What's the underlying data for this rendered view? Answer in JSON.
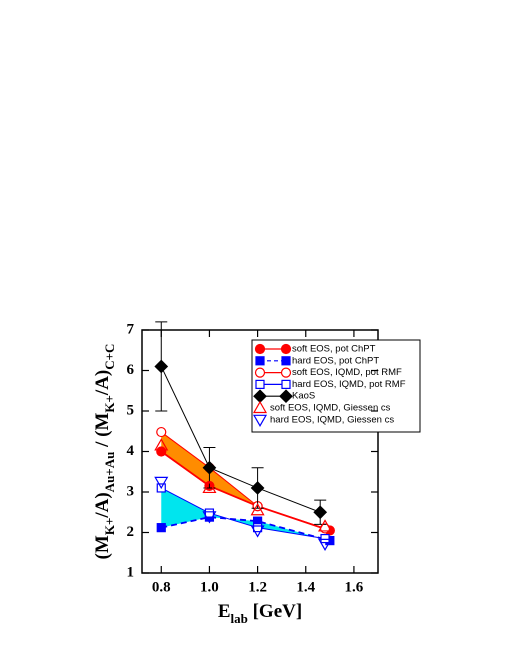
{
  "chart_data": {
    "type": "line",
    "x_label_parts": [
      {
        "text": "E",
        "sub": false
      },
      {
        "text": "lab",
        "sub": true
      },
      {
        "text": " [GeV]",
        "sub": false
      }
    ],
    "y_label_parts": [
      {
        "text": "(M",
        "sub": false
      },
      {
        "text": "K+",
        "sub": true
      },
      {
        "text": "/A)",
        "sub": false
      },
      {
        "text": "Au+Au",
        "sub": true
      },
      {
        "text": " / (M",
        "sub": false
      },
      {
        "text": "K+",
        "sub": true
      },
      {
        "text": "/A)",
        "sub": false
      },
      {
        "text": "C+C",
        "sub": true
      }
    ],
    "xlim": [
      0.72,
      1.7
    ],
    "ylim": [
      1,
      7
    ],
    "xticks": [
      0.8,
      {
        "value": 1,
        "label": "1.0"
      },
      1.2,
      1.4,
      1.6
    ],
    "yticks": [
      1,
      2,
      3,
      4,
      5,
      6,
      7
    ],
    "legend": "upper right",
    "bands": [
      {
        "color": "#ff8c00",
        "between": [
          0,
          2
        ]
      },
      {
        "color": "#00e5ee",
        "between": [
          1,
          3
        ]
      }
    ],
    "series": [
      {
        "name": "soft EOS, pot ChPT",
        "color": "#ff0000",
        "marker": "circle-filled",
        "line": "solid",
        "x": [
          0.8,
          1.0,
          1.2,
          1.5
        ],
        "values": [
          4.0,
          3.15,
          2.65,
          2.05
        ]
      },
      {
        "name": "hard EOS, pot ChPT",
        "color": "#0000ff",
        "marker": "square-filled",
        "line": "dashed",
        "x": [
          0.8,
          1.0,
          1.2,
          1.5
        ],
        "values": [
          2.12,
          2.38,
          2.28,
          1.8
        ]
      },
      {
        "name": "soft EOS, IQMD, pot RMF",
        "color": "#ff0000",
        "marker": "circle-open",
        "line": "solid",
        "x": [
          0.8,
          1.0,
          1.2,
          1.48
        ],
        "values": [
          4.48,
          3.6,
          2.65,
          2.1
        ]
      },
      {
        "name": "hard EOS, IQMD, pot RMF",
        "color": "#0000ff",
        "marker": "square-open",
        "line": "solid",
        "x": [
          0.8,
          1.0,
          1.2,
          1.48
        ],
        "values": [
          3.1,
          2.48,
          2.12,
          1.85
        ]
      },
      {
        "name": "KaoS",
        "color": "#000000",
        "marker": "diamond",
        "line": "solid",
        "x": [
          0.8,
          1.0,
          1.2,
          1.46
        ],
        "values": [
          6.1,
          3.6,
          3.1,
          2.5
        ],
        "errors": [
          1.1,
          0.5,
          0.5,
          0.3
        ]
      },
      {
        "name": "soft EOS, IQMD, Giessen cs",
        "color": "#ff0000",
        "marker": "triangle-up-open",
        "line": null,
        "x": [
          0.8,
          1.0,
          1.2,
          1.48
        ],
        "values": [
          4.15,
          3.1,
          2.55,
          2.15
        ]
      },
      {
        "name": "hard EOS, IQMD, Giessen cs",
        "color": "#0000ff",
        "marker": "triangle-down-open",
        "line": null,
        "x": [
          0.8,
          1.0,
          1.2,
          1.48
        ],
        "values": [
          3.25,
          2.4,
          2.05,
          1.72
        ]
      }
    ]
  }
}
